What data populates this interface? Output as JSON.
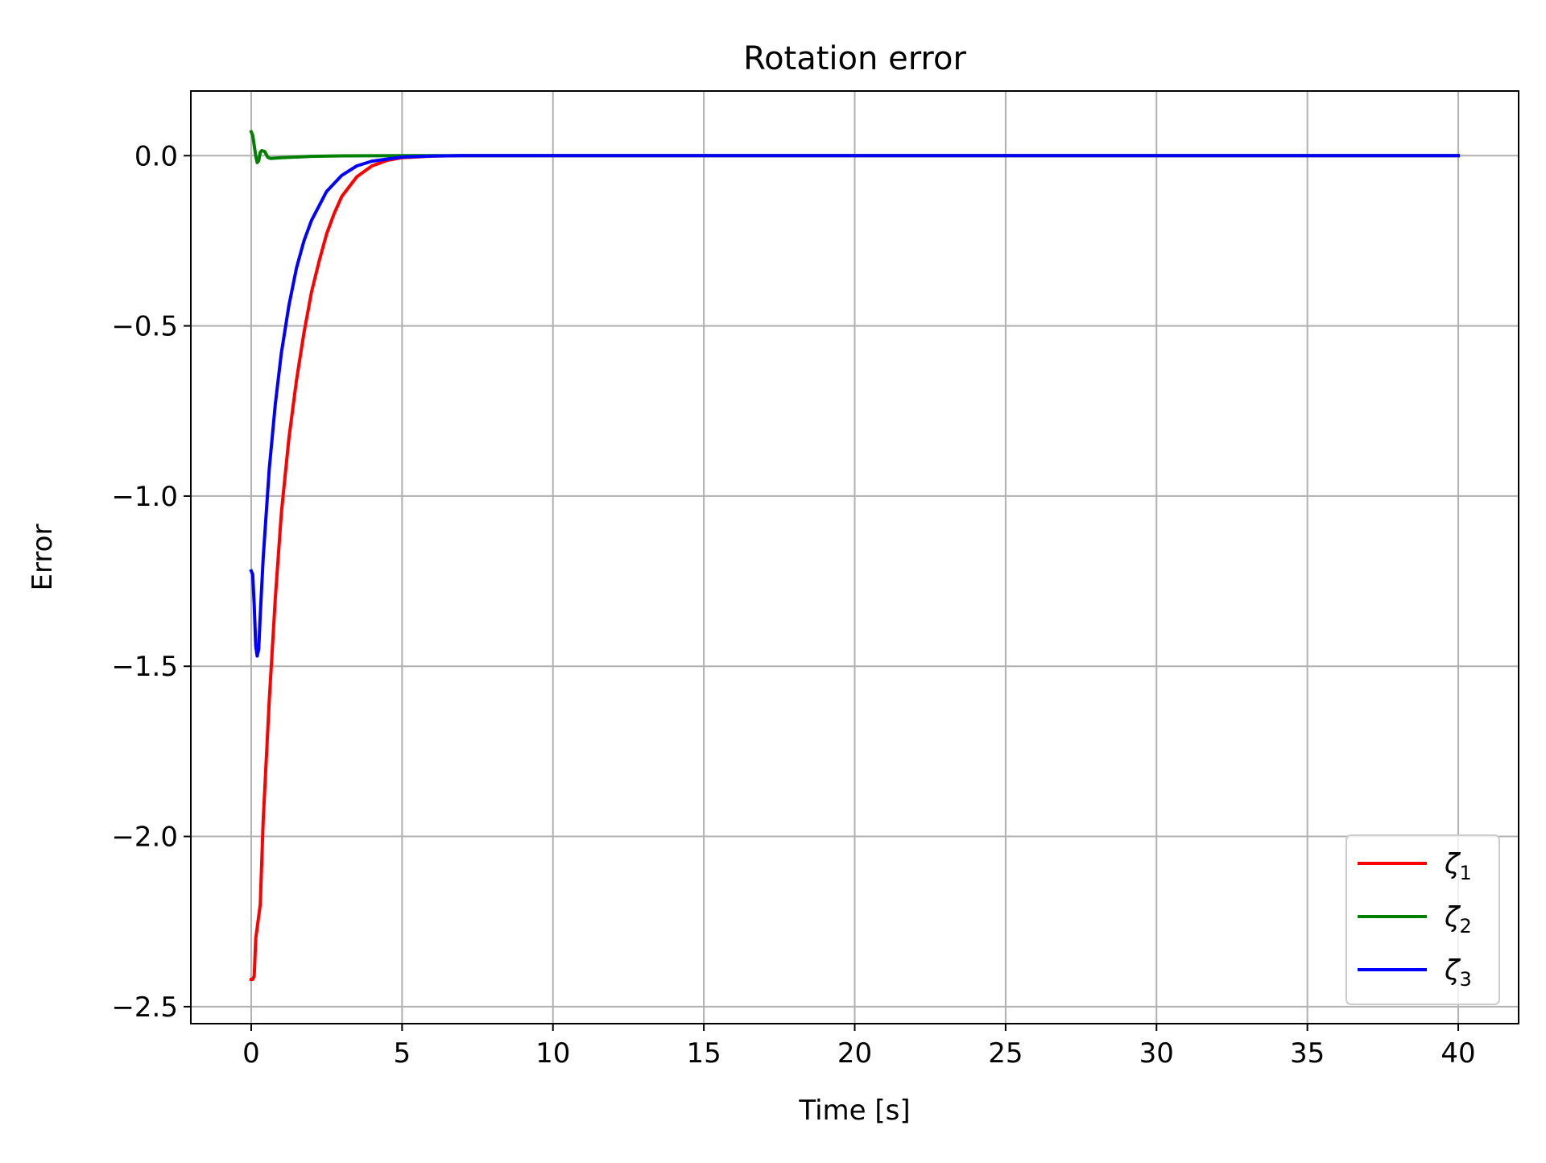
{
  "chart_data": {
    "type": "line",
    "title": "Rotation error",
    "xlabel": "Time [s]",
    "ylabel": "Error",
    "xlim": [
      -2,
      42
    ],
    "ylim": [
      -2.55,
      0.19
    ],
    "xticks": [
      0,
      5,
      10,
      15,
      20,
      25,
      30,
      35,
      40
    ],
    "xtick_labels": [
      "0",
      "5",
      "10",
      "15",
      "20",
      "25",
      "30",
      "35",
      "40"
    ],
    "yticks": [
      0.0,
      -0.5,
      -1.0,
      -1.5,
      -2.0,
      -2.5
    ],
    "ytick_labels": [
      "0.0",
      "−0.5",
      "−1.0",
      "−1.5",
      "−2.0",
      "−2.5"
    ],
    "grid": true,
    "legend": {
      "placement": "lower-right",
      "entries": [
        {
          "symbol": "ζ",
          "subscript": "1",
          "color": "#ff0000"
        },
        {
          "symbol": "ζ",
          "subscript": "2",
          "color": "#008000"
        },
        {
          "symbol": "ζ",
          "subscript": "3",
          "color": "#0000ff"
        }
      ]
    },
    "series": [
      {
        "color": "#ff0000",
        "points": [
          [
            0,
            -2.42
          ],
          [
            0.05,
            -2.42
          ],
          [
            0.1,
            -2.41
          ],
          [
            0.15,
            -2.3
          ],
          [
            0.3,
            -2.2
          ],
          [
            0.4,
            -1.95
          ],
          [
            0.6,
            -1.6
          ],
          [
            0.8,
            -1.3
          ],
          [
            1.0,
            -1.05
          ],
          [
            1.25,
            -0.83
          ],
          [
            1.5,
            -0.66
          ],
          [
            1.75,
            -0.52
          ],
          [
            2.0,
            -0.4
          ],
          [
            2.25,
            -0.31
          ],
          [
            2.5,
            -0.23
          ],
          [
            2.75,
            -0.17
          ],
          [
            3.0,
            -0.12
          ],
          [
            3.5,
            -0.062
          ],
          [
            4.0,
            -0.03
          ],
          [
            4.5,
            -0.014
          ],
          [
            5.0,
            -0.006
          ],
          [
            6.0,
            -0.001
          ],
          [
            7.0,
            0.0
          ],
          [
            40.0,
            0.0
          ]
        ]
      },
      {
        "color": "#008000",
        "points": [
          [
            0,
            0.07
          ],
          [
            0.05,
            0.06
          ],
          [
            0.1,
            0.03
          ],
          [
            0.15,
            0.0
          ],
          [
            0.2,
            -0.02
          ],
          [
            0.25,
            -0.015
          ],
          [
            0.3,
            0.01
          ],
          [
            0.35,
            0.015
          ],
          [
            0.45,
            0.012
          ],
          [
            0.55,
            -0.005
          ],
          [
            0.65,
            -0.008
          ],
          [
            1.0,
            -0.006
          ],
          [
            2.0,
            -0.002
          ],
          [
            3.0,
            -0.0005
          ],
          [
            5.0,
            0.0
          ],
          [
            40.0,
            0.0
          ]
        ]
      },
      {
        "color": "#0000ff",
        "points": [
          [
            0,
            -1.22
          ],
          [
            0.05,
            -1.23
          ],
          [
            0.1,
            -1.32
          ],
          [
            0.15,
            -1.44
          ],
          [
            0.2,
            -1.47
          ],
          [
            0.25,
            -1.45
          ],
          [
            0.3,
            -1.35
          ],
          [
            0.4,
            -1.18
          ],
          [
            0.6,
            -0.92
          ],
          [
            0.8,
            -0.73
          ],
          [
            1.0,
            -0.58
          ],
          [
            1.25,
            -0.44
          ],
          [
            1.5,
            -0.33
          ],
          [
            1.75,
            -0.25
          ],
          [
            2.0,
            -0.19
          ],
          [
            2.5,
            -0.105
          ],
          [
            3.0,
            -0.058
          ],
          [
            3.5,
            -0.03
          ],
          [
            4.0,
            -0.016
          ],
          [
            5.0,
            -0.004
          ],
          [
            6.0,
            -0.001
          ],
          [
            7.0,
            0.0
          ],
          [
            40.0,
            0.0
          ]
        ]
      }
    ]
  }
}
